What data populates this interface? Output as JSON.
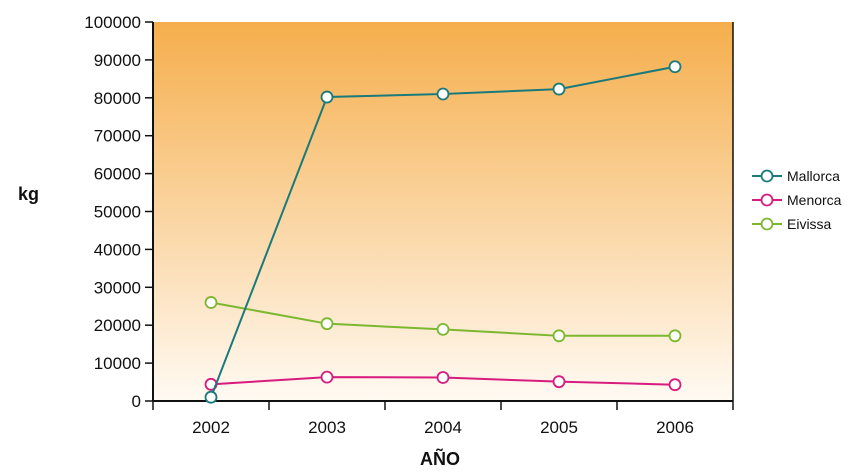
{
  "chart_data": {
    "type": "line",
    "title": "",
    "xlabel": "AÑO",
    "ylabel": "kg",
    "categories": [
      "2002",
      "2003",
      "2004",
      "2005",
      "2006"
    ],
    "ylim": [
      0,
      100000
    ],
    "yticks": [
      "0",
      "10000",
      "20000",
      "30000",
      "40000",
      "50000",
      "60000",
      "70000",
      "80000",
      "90000",
      "100000"
    ],
    "grid": false,
    "legend_position": "right",
    "background": {
      "top": "#f5ae4c",
      "bottom": "#fffaf3"
    },
    "series": [
      {
        "name": "Mallorca",
        "color": "#1a7a7a",
        "values": [
          1000,
          80200,
          81000,
          82300,
          88200
        ]
      },
      {
        "name": "Menorca",
        "color": "#d81b7e",
        "values": [
          4400,
          6300,
          6200,
          5100,
          4300
        ]
      },
      {
        "name": "Eivissa",
        "color": "#7cb82f",
        "values": [
          26000,
          20400,
          18900,
          17200,
          17200
        ]
      }
    ]
  }
}
